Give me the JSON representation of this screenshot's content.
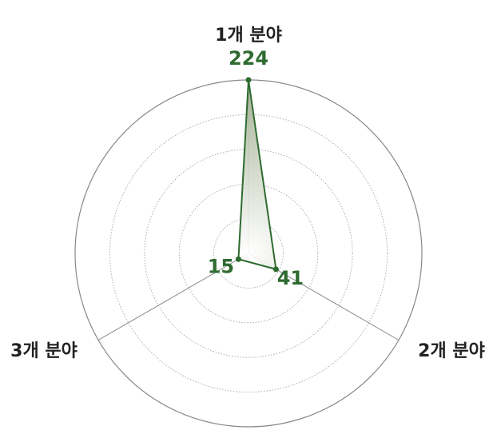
{
  "chart_data": {
    "type": "radar",
    "categories": [
      "1개 분야",
      "2개 분야",
      "3개 분야"
    ],
    "values": [
      224,
      41,
      15
    ],
    "rlim": [
      0,
      224
    ],
    "rings": 5,
    "color": "#2e6b30"
  }
}
